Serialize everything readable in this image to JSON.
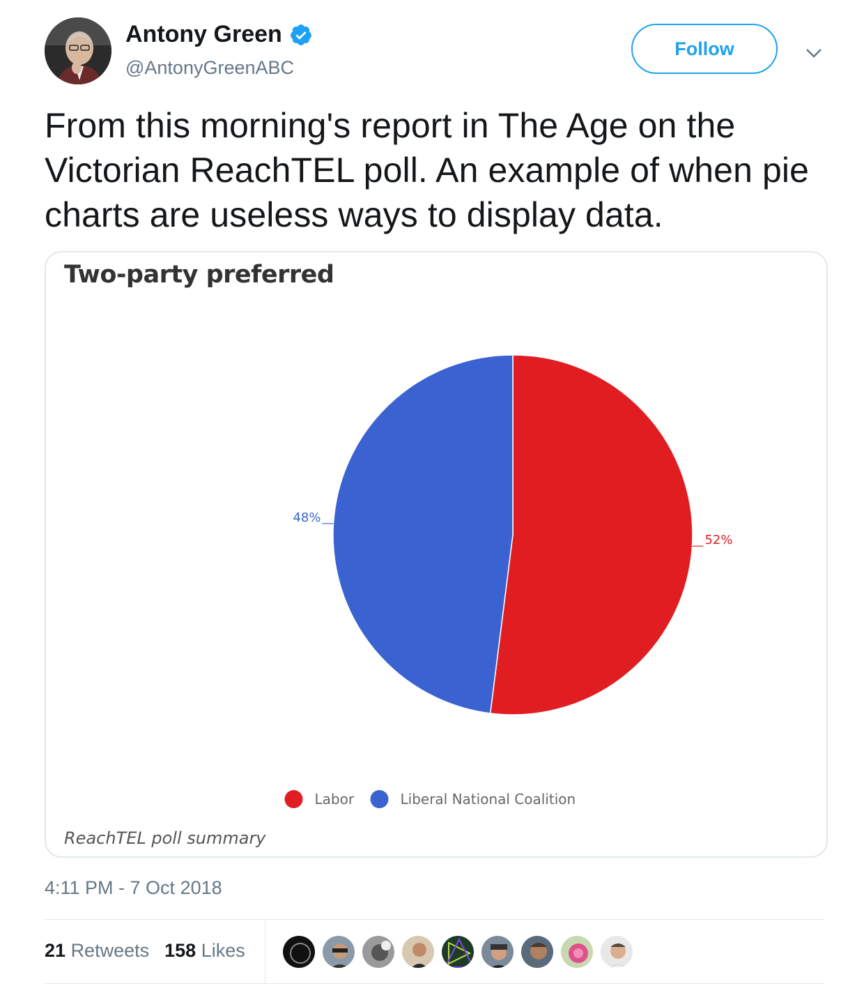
{
  "author": {
    "name": "Antony Green",
    "handle": "@AntonyGreenABC",
    "verified": true
  },
  "follow_label": "Follow",
  "tweet_text": "From this morning's report in The Age on the Victorian ReachTEL poll. An example of when pie charts are useless ways to display data.",
  "chart_data": {
    "type": "pie",
    "title": "Two-party preferred",
    "categories": [
      "Labor",
      "Liberal National Coalition"
    ],
    "values": [
      52,
      48
    ],
    "labels": [
      "52%",
      "48%"
    ],
    "colors": [
      "#e01e22",
      "#3a63d1"
    ],
    "legend_position": "bottom-center",
    "footer": "ReachTEL poll summary"
  },
  "timestamp": "4:11 PM - 7 Oct 2018",
  "stats": {
    "retweets_count": "21",
    "retweets_label": "Retweets",
    "likes_count": "158",
    "likes_label": "Likes"
  },
  "likers_count": 9,
  "colors": {
    "accent": "#1da1f2",
    "text": "#14171a",
    "muted": "#657786",
    "border": "#e1e8ed"
  }
}
